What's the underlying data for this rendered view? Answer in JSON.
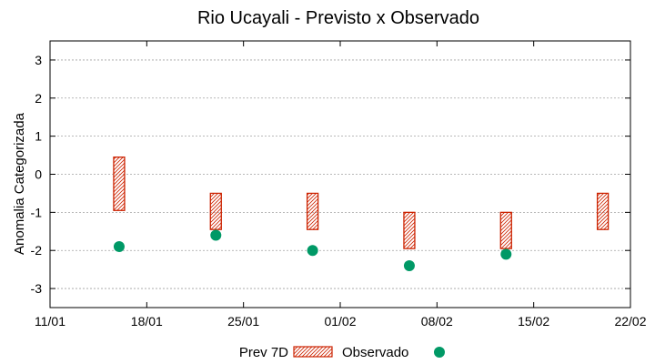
{
  "chart_data": {
    "type": "range-bar-scatter",
    "title": "Rio Ucayali - Previsto x Observado",
    "xlabel": "",
    "ylabel": "Anomalia Categorizada",
    "x_tick_labels": [
      "11/01",
      "18/01",
      "25/01",
      "01/02",
      "08/02",
      "15/02",
      "22/02"
    ],
    "xlim_days": [
      0,
      42
    ],
    "x_tick_days": [
      0,
      7,
      14,
      21,
      28,
      35,
      42
    ],
    "ylim": [
      -3.5,
      3.5
    ],
    "y_ticks": [
      -3,
      -2,
      -1,
      0,
      1,
      2,
      3
    ],
    "y_tick_labels": [
      "-3",
      "-2",
      "-1",
      "0",
      "1",
      "2",
      "3"
    ],
    "grid": true,
    "legend_position": "bottom-center",
    "series": [
      {
        "name": "Prev 7D",
        "kind": "range-bar",
        "color": "#cc2200",
        "points": [
          {
            "day": 5,
            "low": -0.95,
            "high": 0.45
          },
          {
            "day": 12,
            "low": -1.45,
            "high": -0.5
          },
          {
            "day": 19,
            "low": -1.45,
            "high": -0.5
          },
          {
            "day": 26,
            "low": -1.95,
            "high": -1.0
          },
          {
            "day": 33,
            "low": -1.95,
            "high": -1.0
          },
          {
            "day": 40,
            "low": -1.45,
            "high": -0.5
          }
        ]
      },
      {
        "name": "Observado",
        "kind": "scatter",
        "color": "#009966",
        "points": [
          {
            "day": 5,
            "value": -1.9
          },
          {
            "day": 12,
            "value": -1.6
          },
          {
            "day": 19,
            "value": -2.0
          },
          {
            "day": 26,
            "value": -2.4
          },
          {
            "day": 33,
            "value": -2.1
          }
        ]
      }
    ]
  }
}
